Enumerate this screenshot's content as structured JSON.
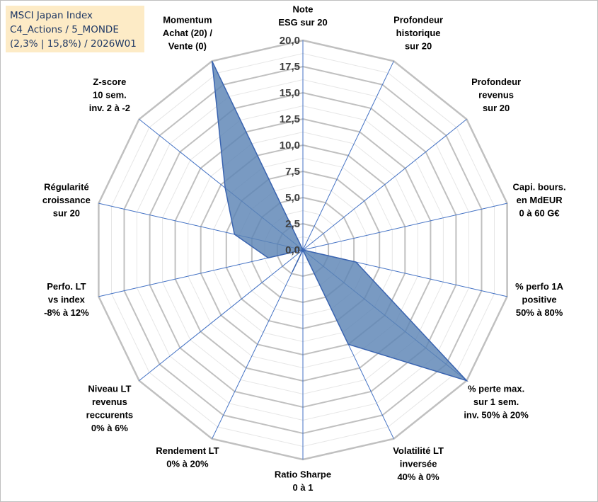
{
  "title": {
    "line1": "MSCI Japan Index",
    "line2": "C4_Actions / 5_MONDE",
    "line3": "(2,3% | 15,8%) / 2026W01"
  },
  "colors": {
    "title_bg": "#fdebc6",
    "title_text": "#1f3864",
    "grid": "#c0c0c0",
    "spoke": "#4472c4",
    "area_fill": "#5b84b5",
    "area_stroke": "#3a64b0"
  },
  "chart_data": {
    "type": "radar",
    "rmin": 0,
    "rmax": 20,
    "ticks": [
      "0,0",
      "2,5",
      "5,0",
      "7,5",
      "10,0",
      "12,5",
      "15,0",
      "17,5",
      "20,0"
    ],
    "tick_values": [
      0,
      2.5,
      5,
      7.5,
      10,
      12.5,
      15,
      17.5,
      20
    ],
    "axes": [
      {
        "label": [
          "Note",
          "ESG sur 20"
        ],
        "value": 0
      },
      {
        "label": [
          "Profondeur",
          "historique",
          "sur 20"
        ],
        "value": 0
      },
      {
        "label": [
          "Profondeur",
          "revenus",
          "sur 20"
        ],
        "value": 0
      },
      {
        "label": [
          "Capi. bours.",
          "en MdEUR",
          "0 à 60 G€"
        ],
        "value": 0
      },
      {
        "label": [
          "% perfo 1A",
          "positive",
          "50% à 80%"
        ],
        "value": 5.2
      },
      {
        "label": [
          "% perte max.",
          "sur 1 sem.",
          "inv. 50% à 20%"
        ],
        "value": 20
      },
      {
        "label": [
          "Volatilité LT",
          "inversée",
          "40% à 0%"
        ],
        "value": 10
      },
      {
        "label": [
          "Ratio Sharpe",
          "0 à 1"
        ],
        "value": 0
      },
      {
        "label": [
          "Rendement LT",
          "0% à 20%"
        ],
        "value": 2.3
      },
      {
        "label": [
          "Niveau LT",
          "revenus",
          "reccurents",
          "0% à 6%"
        ],
        "value": 0
      },
      {
        "label": [
          "Perfo. LT",
          "vs index",
          "-8% à 12%"
        ],
        "value": 3.4
      },
      {
        "label": [
          "Régularité",
          "croissance",
          "sur 20"
        ],
        "value": 6.7
      },
      {
        "label": [
          "Z-score",
          "10 sem.",
          "inv. 2 à -2"
        ],
        "value": 9.5
      },
      {
        "label": [
          "Momentum",
          "Achat (20) /",
          "Vente (0)"
        ],
        "value": 20
      }
    ]
  }
}
